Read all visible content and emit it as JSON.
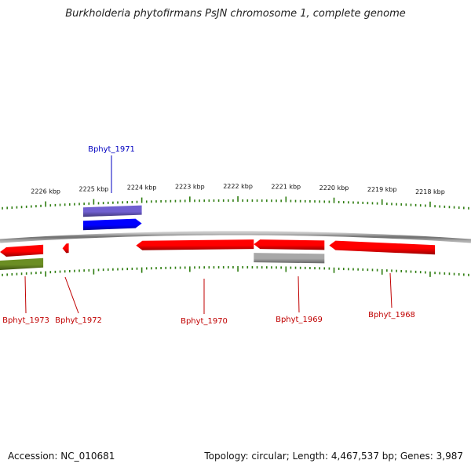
{
  "title": "Burkholderia phytofirmans PsJN chromosome 1, complete genome",
  "footer": {
    "accession": "Accession: NC_010681",
    "summary": "Topology: circular; Length: 4,467,537 bp; Genes: 3,987"
  },
  "colors": {
    "backbone": "#808080",
    "tick": "#2e7d10",
    "cds": "#ff0000",
    "cds_highlight": "#0000ff",
    "cds_highlight_light": "#7060d0",
    "olive": "#6b8e23",
    "pseudo": "#a8a8a8",
    "label_red": "#c00000",
    "label_blue": "#0000c0"
  },
  "scale": {
    "unit": "kbp",
    "start_kbp": 2226.95,
    "end_kbp": 2217.15,
    "major_ticks": [
      {
        "kbp": 2226,
        "label": "2226 kbp"
      },
      {
        "kbp": 2225,
        "label": "2225 kbp"
      },
      {
        "kbp": 2224,
        "label": "2224 kbp"
      },
      {
        "kbp": 2223,
        "label": "2223 kbp"
      },
      {
        "kbp": 2222,
        "label": "2222 kbp"
      },
      {
        "kbp": 2221,
        "label": "2221 kbp"
      },
      {
        "kbp": 2220,
        "label": "2220 kbp"
      },
      {
        "kbp": 2219,
        "label": "2219 kbp"
      },
      {
        "kbp": 2218,
        "label": "2218 kbp"
      }
    ]
  },
  "genes": [
    {
      "id": "g1973",
      "name": "Bphyt_1973",
      "start_kbp": 2226.95,
      "end_kbp": 2226.05,
      "strand": "-",
      "track": "lower",
      "color_key": "cds"
    },
    {
      "id": "g1973b",
      "name": "",
      "start_kbp": 2226.95,
      "end_kbp": 2226.05,
      "strand": "none",
      "track": "lower2",
      "color_key": "olive"
    },
    {
      "id": "g1972",
      "name": "Bphyt_1972",
      "start_kbp": 2225.65,
      "end_kbp": 2225.52,
      "strand": "-",
      "track": "lower",
      "color_key": "cds"
    },
    {
      "id": "g1971",
      "name": "Bphyt_1971",
      "start_kbp": 2225.22,
      "end_kbp": 2224.0,
      "strand": "+",
      "track": "upper",
      "color_key": "cds_highlight"
    },
    {
      "id": "g1971b",
      "name": "",
      "start_kbp": 2225.22,
      "end_kbp": 2224.0,
      "strand": "none",
      "track": "upper2",
      "color_key": "cds_highlight_light"
    },
    {
      "id": "g1970",
      "name": "Bphyt_1970",
      "start_kbp": 2224.12,
      "end_kbp": 2221.67,
      "strand": "-",
      "track": "lower",
      "color_key": "cds"
    },
    {
      "id": "g1969",
      "name": "Bphyt_1969",
      "start_kbp": 2221.67,
      "end_kbp": 2220.2,
      "strand": "-",
      "track": "lower",
      "color_key": "cds"
    },
    {
      "id": "g1969b",
      "name": "",
      "start_kbp": 2221.67,
      "end_kbp": 2220.2,
      "strand": "none",
      "track": "lower2",
      "color_key": "pseudo"
    },
    {
      "id": "g1968",
      "name": "Bphyt_1968",
      "start_kbp": 2220.1,
      "end_kbp": 2217.9,
      "strand": "-",
      "track": "lower",
      "color_key": "cds"
    }
  ]
}
